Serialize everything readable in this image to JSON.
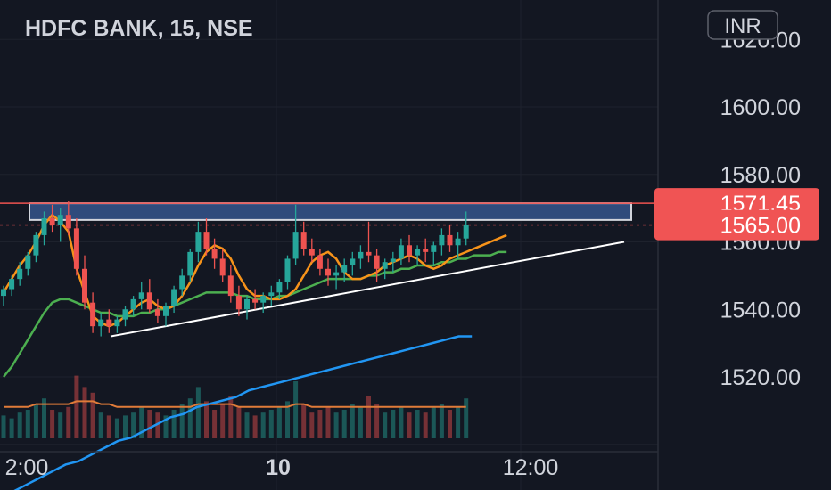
{
  "header": {
    "symbol_title": "HDFC BANK, 15, NSE",
    "currency_button": "INR"
  },
  "colors": {
    "background": "#131722",
    "grid": "#1e222d",
    "up_candle": "#26a69a",
    "down_candle": "#ef5350",
    "ema_fast": "#f7931a",
    "ema_slow": "#4caf50",
    "sma_long": "#2196f3",
    "volume_ma": "#e07b39",
    "resistance_zone": "#2f4b7c",
    "resistance_line": "#ef5350",
    "trendline": "#ffffff",
    "price_tag": "#f05454"
  },
  "chart_data": {
    "type": "candlestick",
    "title": "HDFC BANK, 15, NSE",
    "x_axis": {
      "tick_labels": [
        "2:00",
        "10",
        "12:00"
      ]
    },
    "y_axis": {
      "tick_labels": [
        "1620.00",
        "1600.00",
        "1580.00",
        "1560.00",
        "1540.00",
        "1520.00"
      ],
      "range": [
        1500,
        1630
      ]
    },
    "price_tags": [
      {
        "label": "1571.45",
        "value": 1571.45
      },
      {
        "label": "1565.00",
        "value": 1565.0
      }
    ],
    "resistance_zone": {
      "low": 1566.5,
      "high": 1571.45
    },
    "trendline": {
      "start": [
        58,
        1532
      ],
      "end": [
        335,
        1560
      ]
    },
    "ema_fast": [
      1545,
      1549,
      1553,
      1556,
      1560,
      1565,
      1568,
      1566,
      1563,
      1552,
      1545,
      1538,
      1536,
      1535,
      1536,
      1538,
      1540,
      1542,
      1543,
      1541,
      1540,
      1541,
      1544,
      1548,
      1553,
      1557,
      1559,
      1558,
      1555,
      1550,
      1546,
      1544,
      1544,
      1543,
      1543,
      1544,
      1546,
      1550,
      1554,
      1556,
      1557,
      1555,
      1551,
      1549,
      1549,
      1550,
      1551,
      1553,
      1554,
      1555,
      1556,
      1555,
      1553,
      1552,
      1553,
      1555,
      1556,
      1557,
      1558,
      1559,
      1560,
      1561,
      1562
    ],
    "ema_slow": [
      1520,
      1523,
      1527,
      1531,
      1535,
      1539,
      1542,
      1543,
      1543,
      1542,
      1541,
      1540,
      1539,
      1539,
      1538,
      1538,
      1538,
      1539,
      1539,
      1540,
      1540,
      1541,
      1542,
      1543,
      1544,
      1545,
      1545,
      1545,
      1545,
      1544,
      1544,
      1543,
      1543,
      1543,
      1544,
      1544,
      1545,
      1546,
      1547,
      1548,
      1549,
      1549,
      1549,
      1549,
      1549,
      1550,
      1550,
      1551,
      1551,
      1552,
      1552,
      1553,
      1553,
      1553,
      1554,
      1554,
      1555,
      1555,
      1556,
      1556,
      1556,
      1557,
      1557
    ],
    "sma_long": [
      1484,
      1486,
      1488,
      1490,
      1492,
      1494,
      1495,
      1497,
      1499,
      1501,
      1502,
      1504,
      1506,
      1508,
      1509,
      1511,
      1512,
      1513,
      1514,
      1516,
      1517,
      1518,
      1519,
      1520,
      1521,
      1522,
      1523,
      1524,
      1525,
      1526,
      1527,
      1528,
      1529,
      1530,
      1531,
      1532,
      1532
    ],
    "candles": [
      [
        1544,
        1547,
        1541,
        1546
      ],
      [
        1546,
        1550,
        1544,
        1549
      ],
      [
        1549,
        1554,
        1547,
        1552
      ],
      [
        1552,
        1557,
        1550,
        1556
      ],
      [
        1556,
        1563,
        1554,
        1562
      ],
      [
        1562,
        1569,
        1559,
        1567
      ],
      [
        1567,
        1571,
        1563,
        1565
      ],
      [
        1565,
        1570,
        1560,
        1568
      ],
      [
        1568,
        1572,
        1562,
        1564
      ],
      [
        1564,
        1567,
        1550,
        1552
      ],
      [
        1552,
        1556,
        1540,
        1542
      ],
      [
        1542,
        1545,
        1533,
        1535
      ],
      [
        1535,
        1539,
        1532,
        1537
      ],
      [
        1537,
        1540,
        1533,
        1535
      ],
      [
        1535,
        1538,
        1533,
        1537
      ],
      [
        1537,
        1541,
        1535,
        1540
      ],
      [
        1540,
        1544,
        1538,
        1543
      ],
      [
        1543,
        1548,
        1540,
        1545
      ],
      [
        1545,
        1549,
        1539,
        1540
      ],
      [
        1540,
        1543,
        1536,
        1538
      ],
      [
        1538,
        1542,
        1535,
        1541
      ],
      [
        1541,
        1547,
        1539,
        1546
      ],
      [
        1546,
        1552,
        1544,
        1550
      ],
      [
        1550,
        1558,
        1548,
        1557
      ],
      [
        1557,
        1566,
        1554,
        1563
      ],
      [
        1563,
        1567,
        1556,
        1558
      ],
      [
        1558,
        1561,
        1552,
        1555
      ],
      [
        1555,
        1558,
        1548,
        1550
      ],
      [
        1550,
        1553,
        1542,
        1544
      ],
      [
        1544,
        1547,
        1538,
        1540
      ],
      [
        1540,
        1544,
        1537,
        1543
      ],
      [
        1543,
        1546,
        1540,
        1542
      ],
      [
        1542,
        1545,
        1539,
        1544
      ],
      [
        1544,
        1547,
        1541,
        1545
      ],
      [
        1545,
        1549,
        1543,
        1548
      ],
      [
        1548,
        1556,
        1546,
        1555
      ],
      [
        1555,
        1571,
        1553,
        1563
      ],
      [
        1563,
        1566,
        1556,
        1558
      ],
      [
        1558,
        1561,
        1554,
        1556
      ],
      [
        1556,
        1558,
        1550,
        1552
      ],
      [
        1552,
        1555,
        1547,
        1550
      ],
      [
        1550,
        1553,
        1546,
        1551
      ],
      [
        1551,
        1555,
        1548,
        1553
      ],
      [
        1553,
        1557,
        1550,
        1555
      ],
      [
        1555,
        1559,
        1552,
        1557
      ],
      [
        1557,
        1566,
        1554,
        1556
      ],
      [
        1556,
        1558,
        1548,
        1552
      ],
      [
        1552,
        1555,
        1549,
        1554
      ],
      [
        1554,
        1557,
        1551,
        1555
      ],
      [
        1555,
        1561,
        1553,
        1559
      ],
      [
        1559,
        1562,
        1554,
        1556
      ],
      [
        1556,
        1559,
        1553,
        1558
      ],
      [
        1558,
        1561,
        1554,
        1557
      ],
      [
        1557,
        1560,
        1553,
        1559
      ],
      [
        1559,
        1564,
        1556,
        1562
      ],
      [
        1562,
        1565,
        1557,
        1559
      ],
      [
        1559,
        1563,
        1555,
        1561
      ],
      [
        1561,
        1569,
        1559,
        1565
      ]
    ],
    "volume": [
      8,
      7,
      9,
      10,
      12,
      14,
      10,
      9,
      11,
      22,
      18,
      16,
      9,
      8,
      7,
      8,
      9,
      11,
      10,
      9,
      8,
      10,
      12,
      14,
      18,
      13,
      10,
      12,
      15,
      11,
      9,
      8,
      9,
      10,
      11,
      13,
      20,
      12,
      9,
      10,
      11,
      9,
      10,
      12,
      11,
      15,
      12,
      9,
      10,
      11,
      9,
      10,
      9,
      11,
      12,
      10,
      11,
      14
    ],
    "volume_ma": [
      11,
      11,
      11,
      11,
      12,
      12,
      12,
      12,
      12,
      13,
      13,
      13,
      12,
      12,
      11,
      11,
      11,
      11,
      11,
      11,
      11,
      11,
      11,
      11,
      12,
      12,
      12,
      12,
      12,
      11,
      11,
      11,
      11,
      11,
      11,
      11,
      12,
      12,
      11,
      11,
      11,
      11,
      11,
      11,
      11,
      11,
      11,
      11,
      11,
      11,
      11,
      11,
      11,
      11,
      11,
      11,
      11,
      11
    ]
  }
}
